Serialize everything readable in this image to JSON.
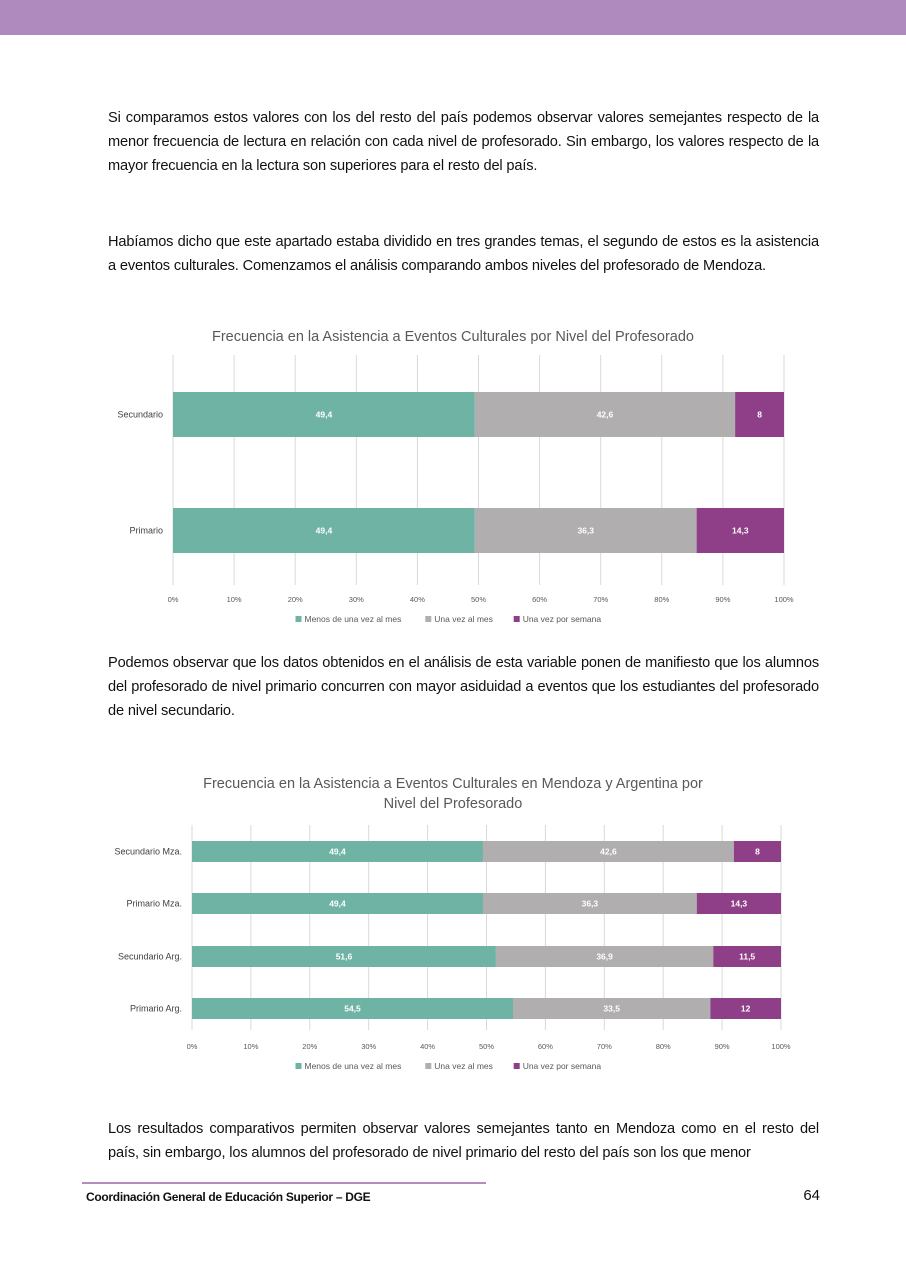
{
  "paragraphs": [
    "Si comparamos estos valores con los del resto del país podemos observar valores semejantes respecto de la menor frecuencia de lectura en relación con cada nivel de profesorado. Sin embargo, los valores respecto de la mayor frecuencia en la lectura son superiores para el resto del país.",
    "Habíamos dicho que este apartado estaba dividido en tres grandes temas, el segundo de estos es la asistencia a eventos culturales. Comenzamos el análisis comparando ambos niveles del profesorado de Mendoza.",
    "Podemos observar que los datos obtenidos en el análisis de esta variable ponen de manifiesto que los alumnos del profesorado de nivel primario concurren con mayor asiduidad a eventos que los estudiantes del profesorado de nivel secundario.",
    "Los resultados comparativos permiten observar valores semejantes tanto en Mendoza como en el resto del país, sin embargo, los alumnos del profesorado de nivel primario del resto del país son los que menor"
  ],
  "footer": {
    "text": "Coordinación General de Educación Superior – DGE",
    "page_number": "64"
  },
  "colors": {
    "header_band": "#ae8abf",
    "series1": "#6fb3a5",
    "series2": "#b0aeae",
    "series3": "#8e3f88"
  },
  "chart_data": [
    {
      "type": "bar",
      "orientation": "horizontal",
      "stacked": "100%",
      "title": [
        "Frecuencia en la Asistencia a Eventos Culturales por Nivel del Profesorado"
      ],
      "categories": [
        "Secundario",
        "Primario"
      ],
      "series": [
        {
          "name": "Menos de una vez al mes",
          "values": [
            49.4,
            49.4
          ],
          "labels": [
            "49,4",
            "49,4"
          ]
        },
        {
          "name": "Una vez al mes",
          "values": [
            42.6,
            36.3
          ],
          "labels": [
            "42,6",
            "36,3"
          ]
        },
        {
          "name": "Una vez por semana",
          "values": [
            8,
            14.3
          ],
          "labels": [
            "8",
            "14,3"
          ]
        }
      ],
      "xticks": [
        "0%",
        "10%",
        "20%",
        "30%",
        "40%",
        "50%",
        "60%",
        "70%",
        "80%",
        "90%",
        "100%"
      ],
      "xlim": [
        0,
        100
      ],
      "grid": true,
      "legend": "bottom"
    },
    {
      "type": "bar",
      "orientation": "horizontal",
      "stacked": "100%",
      "title": [
        "Frecuencia en la Asistencia a Eventos Culturales en Mendoza y Argentina por",
        "Nivel del Profesorado"
      ],
      "categories": [
        "Secundario Mza.",
        "Primario Mza.",
        "Secundario Arg.",
        "Primario Arg."
      ],
      "series": [
        {
          "name": "Menos de una vez al mes",
          "values": [
            49.4,
            49.4,
            51.6,
            54.5
          ],
          "labels": [
            "49,4",
            "49,4",
            "51,6",
            "54,5"
          ]
        },
        {
          "name": "Una vez al mes",
          "values": [
            42.6,
            36.3,
            36.9,
            33.5
          ],
          "labels": [
            "42,6",
            "36,3",
            "36,9",
            "33,5"
          ]
        },
        {
          "name": "Una vez por semana",
          "values": [
            8,
            14.3,
            11.5,
            12
          ],
          "labels": [
            "8",
            "14,3",
            "11,5",
            "12"
          ]
        }
      ],
      "xticks": [
        "0%",
        "10%",
        "20%",
        "30%",
        "40%",
        "50%",
        "60%",
        "70%",
        "80%",
        "90%",
        "100%"
      ],
      "xlim": [
        0,
        100
      ],
      "grid": true,
      "legend": "bottom"
    }
  ]
}
